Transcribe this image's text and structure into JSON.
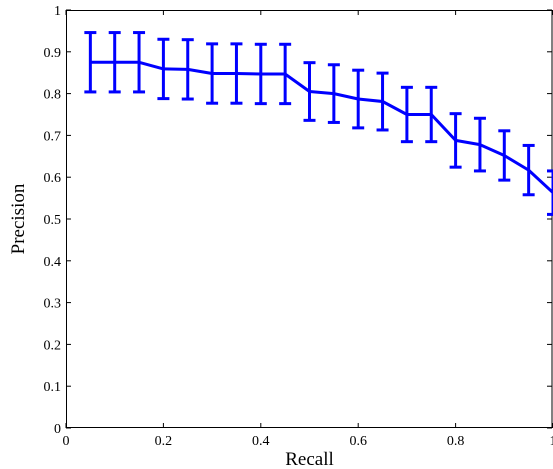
{
  "chart_data": {
    "type": "line",
    "title": "",
    "xlabel": "Recall",
    "ylabel": "Precision",
    "xlim": [
      0,
      1
    ],
    "ylim": [
      0,
      1
    ],
    "xticks": [
      0,
      0.2,
      0.4,
      0.6,
      0.8,
      1
    ],
    "yticks": [
      0,
      0.1,
      0.2,
      0.3,
      0.4,
      0.5,
      0.6,
      0.7,
      0.8,
      0.9,
      1
    ],
    "xtick_labels": [
      "0",
      "0.2",
      "0.4",
      "0.6",
      "0.8",
      "1"
    ],
    "ytick_labels": [
      "0",
      "0.1",
      "0.2",
      "0.3",
      "0.4",
      "0.5",
      "0.6",
      "0.7",
      "0.8",
      "0.9",
      "1"
    ],
    "grid": false,
    "series_color": "#0000ff",
    "series": [
      {
        "x": [
          0.05,
          0.1,
          0.15,
          0.2,
          0.25,
          0.3,
          0.35,
          0.4,
          0.45,
          0.5,
          0.55,
          0.6,
          0.65,
          0.7,
          0.75,
          0.8,
          0.85,
          0.9,
          0.95,
          1.0
        ],
        "y": [
          0.875,
          0.875,
          0.875,
          0.859,
          0.858,
          0.848,
          0.848,
          0.847,
          0.847,
          0.805,
          0.8,
          0.787,
          0.781,
          0.75,
          0.75,
          0.688,
          0.678,
          0.652,
          0.617,
          0.563
        ],
        "err": [
          0.071,
          0.071,
          0.071,
          0.071,
          0.071,
          0.071,
          0.071,
          0.071,
          0.071,
          0.069,
          0.069,
          0.069,
          0.068,
          0.065,
          0.065,
          0.064,
          0.063,
          0.059,
          0.059,
          0.052
        ]
      }
    ]
  }
}
